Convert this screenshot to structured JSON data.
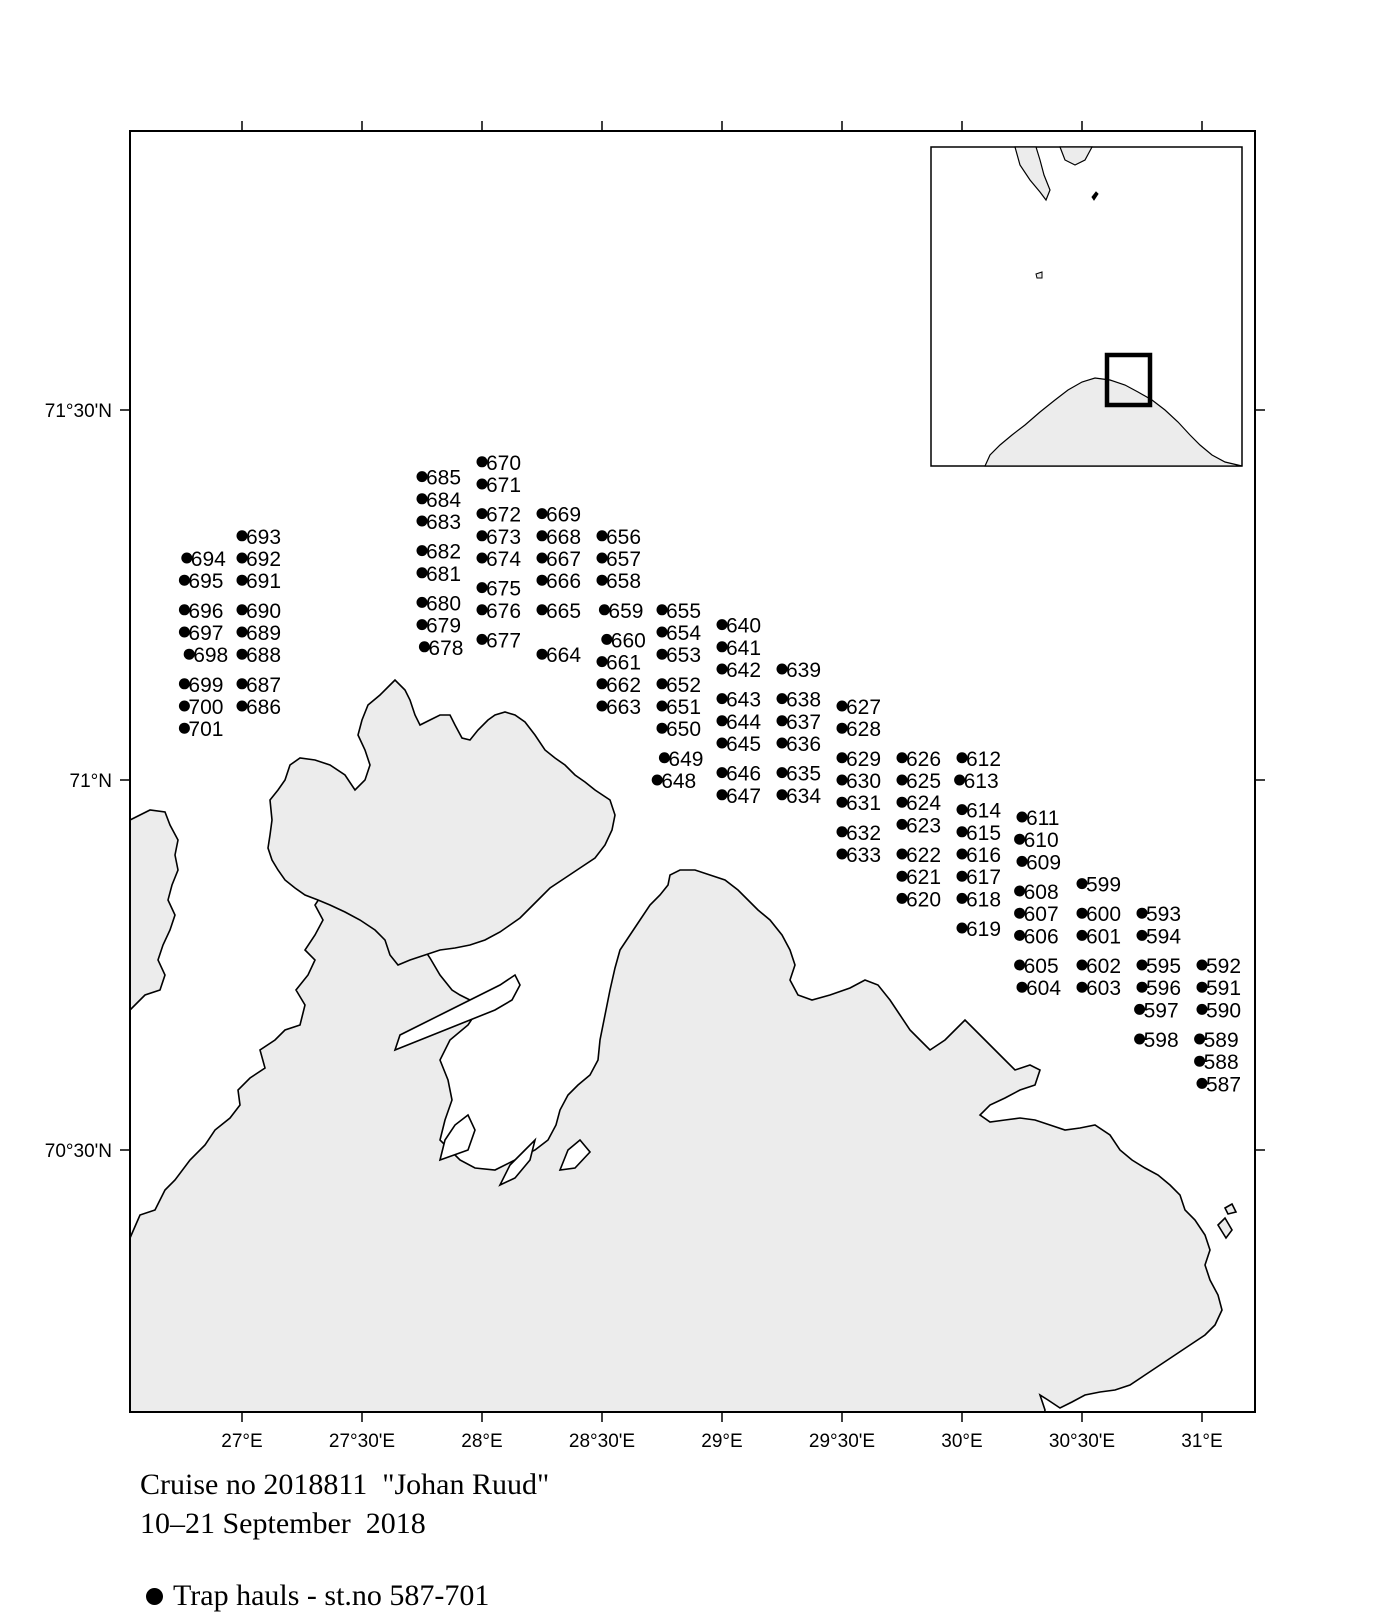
{
  "colors": {
    "land": "#ececec",
    "coast": "#000000",
    "water": "#ffffff",
    "marker": "#000000"
  },
  "axes": {
    "x_ticks": [
      {
        "lon": 27.0,
        "label": "27°E"
      },
      {
        "lon": 27.5,
        "label": "27°30'E"
      },
      {
        "lon": 28.0,
        "label": "28°E"
      },
      {
        "lon": 28.5,
        "label": "28°30'E"
      },
      {
        "lon": 29.0,
        "label": "29°E"
      },
      {
        "lon": 29.5,
        "label": "29°30'E"
      },
      {
        "lon": 30.0,
        "label": "30°E"
      },
      {
        "lon": 30.5,
        "label": "30°30'E"
      },
      {
        "lon": 31.0,
        "label": "31°E"
      }
    ],
    "y_ticks": [
      {
        "lat": 71.5,
        "label": "71°30'N"
      },
      {
        "lat": 71.0,
        "label": "71°N"
      },
      {
        "lat": 70.5,
        "label": "70°30'N"
      }
    ],
    "lon_range": [
      26.5,
      31.2
    ],
    "lat_range": [
      70.13,
      71.87
    ]
  },
  "inset": {
    "description_icon": "overview-map-icon"
  },
  "caption": {
    "line1": "Cruise no 2018811  \"Johan Ruud\"",
    "line2": "10–21 September  2018"
  },
  "legend": {
    "label": "Trap hauls - st.no 587-701",
    "icon": "filled-circle-icon"
  },
  "chart_data": {
    "type": "scatter",
    "title": "",
    "xlabel": "",
    "ylabel": "",
    "x_unit": "degrees east",
    "y_unit": "degrees north",
    "xlim": [
      26.5,
      31.2
    ],
    "ylim": [
      70.13,
      71.87
    ],
    "series": [
      {
        "name": "Trap hauls - st.no 587-701",
        "points": [
          {
            "id": "694",
            "lon": 26.77,
            "lat": 71.3
          },
          {
            "id": "695",
            "lon": 26.76,
            "lat": 71.27
          },
          {
            "id": "696",
            "lon": 26.76,
            "lat": 71.23
          },
          {
            "id": "697",
            "lon": 26.76,
            "lat": 71.2
          },
          {
            "id": "698",
            "lon": 26.78,
            "lat": 71.17
          },
          {
            "id": "699",
            "lon": 26.76,
            "lat": 71.13
          },
          {
            "id": "700",
            "lon": 26.76,
            "lat": 71.1
          },
          {
            "id": "701",
            "lon": 26.76,
            "lat": 71.07
          },
          {
            "id": "693",
            "lon": 27.0,
            "lat": 71.33
          },
          {
            "id": "692",
            "lon": 27.0,
            "lat": 71.3
          },
          {
            "id": "691",
            "lon": 27.0,
            "lat": 71.27
          },
          {
            "id": "690",
            "lon": 27.0,
            "lat": 71.23
          },
          {
            "id": "689",
            "lon": 27.0,
            "lat": 71.2
          },
          {
            "id": "688",
            "lon": 27.0,
            "lat": 71.17
          },
          {
            "id": "687",
            "lon": 27.0,
            "lat": 71.13
          },
          {
            "id": "686",
            "lon": 27.0,
            "lat": 71.1
          },
          {
            "id": "685",
            "lon": 27.75,
            "lat": 71.41
          },
          {
            "id": "684",
            "lon": 27.75,
            "lat": 71.38
          },
          {
            "id": "683",
            "lon": 27.75,
            "lat": 71.35
          },
          {
            "id": "682",
            "lon": 27.75,
            "lat": 71.31
          },
          {
            "id": "681",
            "lon": 27.75,
            "lat": 71.28
          },
          {
            "id": "680",
            "lon": 27.75,
            "lat": 71.24
          },
          {
            "id": "679",
            "lon": 27.75,
            "lat": 71.21
          },
          {
            "id": "678",
            "lon": 27.76,
            "lat": 71.18
          },
          {
            "id": "670",
            "lon": 28.0,
            "lat": 71.43
          },
          {
            "id": "671",
            "lon": 28.0,
            "lat": 71.4
          },
          {
            "id": "672",
            "lon": 28.0,
            "lat": 71.36
          },
          {
            "id": "673",
            "lon": 28.0,
            "lat": 71.33
          },
          {
            "id": "674",
            "lon": 28.0,
            "lat": 71.3
          },
          {
            "id": "675",
            "lon": 28.0,
            "lat": 71.26
          },
          {
            "id": "676",
            "lon": 28.0,
            "lat": 71.23
          },
          {
            "id": "677",
            "lon": 28.0,
            "lat": 71.19
          },
          {
            "id": "669",
            "lon": 28.25,
            "lat": 71.36
          },
          {
            "id": "668",
            "lon": 28.25,
            "lat": 71.33
          },
          {
            "id": "667",
            "lon": 28.25,
            "lat": 71.3
          },
          {
            "id": "666",
            "lon": 28.25,
            "lat": 71.27
          },
          {
            "id": "665",
            "lon": 28.25,
            "lat": 71.23
          },
          {
            "id": "664",
            "lon": 28.25,
            "lat": 71.17
          },
          {
            "id": "656",
            "lon": 28.5,
            "lat": 71.33
          },
          {
            "id": "657",
            "lon": 28.5,
            "lat": 71.3
          },
          {
            "id": "658",
            "lon": 28.5,
            "lat": 71.27
          },
          {
            "id": "659",
            "lon": 28.51,
            "lat": 71.23
          },
          {
            "id": "660",
            "lon": 28.52,
            "lat": 71.19
          },
          {
            "id": "661",
            "lon": 28.5,
            "lat": 71.16
          },
          {
            "id": "662",
            "lon": 28.5,
            "lat": 71.13
          },
          {
            "id": "663",
            "lon": 28.5,
            "lat": 71.1
          },
          {
            "id": "655",
            "lon": 28.75,
            "lat": 71.23
          },
          {
            "id": "654",
            "lon": 28.75,
            "lat": 71.2
          },
          {
            "id": "653",
            "lon": 28.75,
            "lat": 71.17
          },
          {
            "id": "652",
            "lon": 28.75,
            "lat": 71.13
          },
          {
            "id": "651",
            "lon": 28.75,
            "lat": 71.1
          },
          {
            "id": "650",
            "lon": 28.75,
            "lat": 71.07
          },
          {
            "id": "649",
            "lon": 28.76,
            "lat": 71.03
          },
          {
            "id": "648",
            "lon": 28.73,
            "lat": 71.0
          },
          {
            "id": "640",
            "lon": 29.0,
            "lat": 71.21
          },
          {
            "id": "641",
            "lon": 29.0,
            "lat": 71.18
          },
          {
            "id": "642",
            "lon": 29.0,
            "lat": 71.15
          },
          {
            "id": "643",
            "lon": 29.0,
            "lat": 71.11
          },
          {
            "id": "644",
            "lon": 29.0,
            "lat": 71.08
          },
          {
            "id": "645",
            "lon": 29.0,
            "lat": 71.05
          },
          {
            "id": "646",
            "lon": 29.0,
            "lat": 71.01
          },
          {
            "id": "647",
            "lon": 29.0,
            "lat": 70.98
          },
          {
            "id": "639",
            "lon": 29.25,
            "lat": 71.15
          },
          {
            "id": "638",
            "lon": 29.25,
            "lat": 71.11
          },
          {
            "id": "637",
            "lon": 29.25,
            "lat": 71.08
          },
          {
            "id": "636",
            "lon": 29.25,
            "lat": 71.05
          },
          {
            "id": "635",
            "lon": 29.25,
            "lat": 71.01
          },
          {
            "id": "634",
            "lon": 29.25,
            "lat": 70.98
          },
          {
            "id": "627",
            "lon": 29.5,
            "lat": 71.1
          },
          {
            "id": "628",
            "lon": 29.5,
            "lat": 71.07
          },
          {
            "id": "629",
            "lon": 29.5,
            "lat": 71.03
          },
          {
            "id": "630",
            "lon": 29.5,
            "lat": 71.0
          },
          {
            "id": "631",
            "lon": 29.5,
            "lat": 70.97
          },
          {
            "id": "632",
            "lon": 29.5,
            "lat": 70.93
          },
          {
            "id": "633",
            "lon": 29.5,
            "lat": 70.9
          },
          {
            "id": "626",
            "lon": 29.75,
            "lat": 71.03
          },
          {
            "id": "625",
            "lon": 29.75,
            "lat": 71.0
          },
          {
            "id": "624",
            "lon": 29.75,
            "lat": 70.97
          },
          {
            "id": "623",
            "lon": 29.75,
            "lat": 70.94
          },
          {
            "id": "622",
            "lon": 29.75,
            "lat": 70.9
          },
          {
            "id": "621",
            "lon": 29.75,
            "lat": 70.87
          },
          {
            "id": "620",
            "lon": 29.75,
            "lat": 70.84
          },
          {
            "id": "612",
            "lon": 30.0,
            "lat": 71.03
          },
          {
            "id": "613",
            "lon": 29.99,
            "lat": 71.0
          },
          {
            "id": "614",
            "lon": 30.0,
            "lat": 70.96
          },
          {
            "id": "615",
            "lon": 30.0,
            "lat": 70.93
          },
          {
            "id": "616",
            "lon": 30.0,
            "lat": 70.9
          },
          {
            "id": "617",
            "lon": 30.0,
            "lat": 70.87
          },
          {
            "id": "618",
            "lon": 30.0,
            "lat": 70.84
          },
          {
            "id": "619",
            "lon": 30.0,
            "lat": 70.8
          },
          {
            "id": "611",
            "lon": 30.25,
            "lat": 70.95
          },
          {
            "id": "610",
            "lon": 30.24,
            "lat": 70.92
          },
          {
            "id": "609",
            "lon": 30.25,
            "lat": 70.89
          },
          {
            "id": "608",
            "lon": 30.24,
            "lat": 70.85
          },
          {
            "id": "607",
            "lon": 30.24,
            "lat": 70.82
          },
          {
            "id": "606",
            "lon": 30.24,
            "lat": 70.79
          },
          {
            "id": "605",
            "lon": 30.24,
            "lat": 70.75
          },
          {
            "id": "604",
            "lon": 30.25,
            "lat": 70.72
          },
          {
            "id": "599",
            "lon": 30.5,
            "lat": 70.86
          },
          {
            "id": "600",
            "lon": 30.5,
            "lat": 70.82
          },
          {
            "id": "601",
            "lon": 30.5,
            "lat": 70.79
          },
          {
            "id": "602",
            "lon": 30.5,
            "lat": 70.75
          },
          {
            "id": "603",
            "lon": 30.5,
            "lat": 70.72
          },
          {
            "id": "593",
            "lon": 30.75,
            "lat": 70.82
          },
          {
            "id": "594",
            "lon": 30.75,
            "lat": 70.79
          },
          {
            "id": "595",
            "lon": 30.75,
            "lat": 70.75
          },
          {
            "id": "596",
            "lon": 30.75,
            "lat": 70.72
          },
          {
            "id": "597",
            "lon": 30.74,
            "lat": 70.69
          },
          {
            "id": "598",
            "lon": 30.74,
            "lat": 70.65
          },
          {
            "id": "592",
            "lon": 31.0,
            "lat": 70.75
          },
          {
            "id": "591",
            "lon": 31.0,
            "lat": 70.72
          },
          {
            "id": "590",
            "lon": 31.0,
            "lat": 70.69
          },
          {
            "id": "589",
            "lon": 30.99,
            "lat": 70.65
          },
          {
            "id": "588",
            "lon": 30.99,
            "lat": 70.62
          },
          {
            "id": "587",
            "lon": 31.0,
            "lat": 70.59
          }
        ]
      }
    ]
  }
}
